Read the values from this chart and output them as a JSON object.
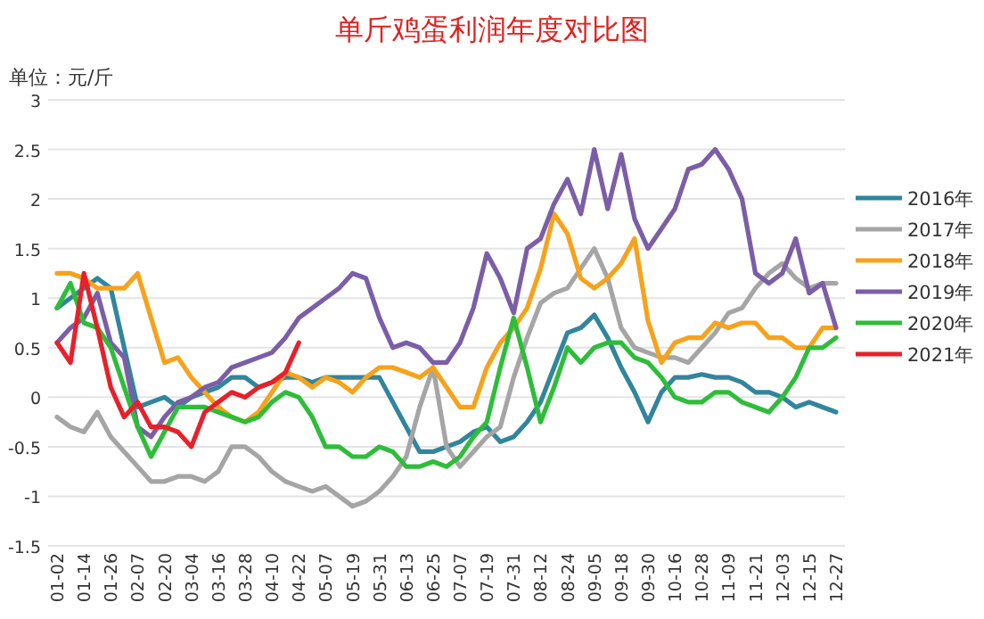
{
  "chart_data": {
    "type": "line",
    "title": "单斤鸡蛋利润年度对比图",
    "ylabel": "单位：元/斤",
    "categories": [
      "01-02",
      null,
      "01-14",
      null,
      "01-26",
      null,
      "02-07",
      null,
      "02-20",
      null,
      "03-04",
      null,
      "03-16",
      null,
      "03-28",
      null,
      "04-10",
      null,
      "04-22",
      null,
      "05-07",
      null,
      "05-19",
      null,
      "05-31",
      null,
      "06-13",
      null,
      "06-25",
      null,
      "07-07",
      null,
      "07-19",
      null,
      "07-31",
      null,
      "08-12",
      null,
      "08-24",
      null,
      "09-05",
      null,
      "09-18",
      null,
      "09-30",
      null,
      "10-16",
      null,
      "10-28",
      null,
      "11-09",
      null,
      "11-21",
      null,
      "12-03",
      null,
      "12-15",
      null,
      "12-27"
    ],
    "series": [
      {
        "name": "2016年",
        "color": "#31859c",
        "values": [
          0.9,
          1.0,
          1.1,
          1.2,
          1.1,
          0.5,
          -0.1,
          -0.05,
          0,
          -0.1,
          0,
          0.05,
          0.1,
          0.2,
          0.2,
          0.1,
          0.15,
          0.2,
          0.2,
          0.15,
          0.2,
          0.2,
          0.2,
          0.2,
          0.2,
          -0.05,
          -0.3,
          -0.55,
          -0.55,
          -0.5,
          -0.45,
          -0.35,
          -0.3,
          -0.45,
          -0.4,
          -0.25,
          -0.05,
          0.3,
          0.65,
          0.7,
          0.83,
          0.6,
          0.3,
          0.05,
          -0.25,
          0.05,
          0.2,
          0.2,
          0.23,
          0.2,
          0.2,
          0.15,
          0.05,
          0.05,
          0,
          -0.1,
          -0.05,
          -0.1,
          -0.15
        ]
      },
      {
        "name": "2017年",
        "color": "#a5a5a5",
        "values": [
          -0.2,
          -0.3,
          -0.35,
          -0.15,
          -0.4,
          -0.55,
          -0.7,
          -0.85,
          -0.85,
          -0.8,
          -0.8,
          -0.85,
          -0.75,
          -0.5,
          -0.5,
          -0.6,
          -0.75,
          -0.85,
          -0.9,
          -0.95,
          -0.9,
          -1.0,
          -1.1,
          -1.05,
          -0.95,
          -0.8,
          -0.6,
          -0.1,
          0.3,
          -0.5,
          -0.7,
          -0.55,
          -0.4,
          -0.3,
          0.2,
          0.6,
          0.95,
          1.05,
          1.1,
          1.3,
          1.5,
          1.2,
          0.7,
          0.5,
          0.45,
          0.4,
          0.4,
          0.35,
          0.5,
          0.65,
          0.85,
          0.9,
          1.1,
          1.25,
          1.35,
          1.2,
          1.1,
          1.15,
          1.15
        ]
      },
      {
        "name": "2018年",
        "color": "#f7a21b",
        "values": [
          1.25,
          1.25,
          1.2,
          1.1,
          1.1,
          1.1,
          1.25,
          0.8,
          0.35,
          0.4,
          0.2,
          0.05,
          -0.1,
          -0.2,
          -0.25,
          -0.15,
          0.05,
          0.25,
          0.2,
          0.1,
          0.2,
          0.15,
          0.05,
          0.2,
          0.3,
          0.3,
          0.25,
          0.2,
          0.3,
          0.1,
          -0.1,
          -0.1,
          0.3,
          0.55,
          0.7,
          0.9,
          1.3,
          1.85,
          1.65,
          1.2,
          1.1,
          1.2,
          1.35,
          1.6,
          0.77,
          0.35,
          0.55,
          0.6,
          0.6,
          0.75,
          0.7,
          0.75,
          0.75,
          0.6,
          0.6,
          0.5,
          0.5,
          0.7,
          0.7
        ]
      },
      {
        "name": "2019年",
        "color": "#7b5ea7",
        "values": [
          0.55,
          0.7,
          0.8,
          1.05,
          0.55,
          0.4,
          -0.3,
          -0.4,
          -0.2,
          -0.05,
          0,
          0.1,
          0.15,
          0.3,
          0.35,
          0.4,
          0.45,
          0.6,
          0.8,
          0.9,
          1.0,
          1.1,
          1.25,
          1.2,
          0.8,
          0.5,
          0.55,
          0.5,
          0.35,
          0.35,
          0.55,
          0.9,
          1.45,
          1.2,
          0.85,
          1.5,
          1.6,
          1.95,
          2.2,
          1.85,
          2.5,
          1.9,
          2.45,
          1.8,
          1.5,
          1.7,
          1.9,
          2.3,
          2.35,
          2.5,
          2.3,
          2.0,
          1.25,
          1.15,
          1.25,
          1.6,
          1.05,
          1.15,
          0.7
        ]
      },
      {
        "name": "2020年",
        "color": "#2ebd3a",
        "values": [
          0.9,
          1.15,
          0.75,
          0.7,
          0.5,
          0.1,
          -0.3,
          -0.6,
          -0.35,
          -0.1,
          -0.1,
          -0.1,
          -0.15,
          -0.2,
          -0.25,
          -0.2,
          -0.05,
          0.05,
          0,
          -0.2,
          -0.5,
          -0.5,
          -0.6,
          -0.6,
          -0.5,
          -0.55,
          -0.7,
          -0.7,
          -0.65,
          -0.7,
          -0.6,
          -0.4,
          -0.25,
          0.3,
          0.8,
          0.3,
          -0.25,
          0.1,
          0.5,
          0.35,
          0.5,
          0.55,
          0.55,
          0.4,
          0.35,
          0.2,
          0,
          -0.05,
          -0.05,
          0.05,
          0.05,
          -0.05,
          -0.1,
          -0.15,
          0,
          0.2,
          0.5,
          0.5,
          0.6
        ]
      },
      {
        "name": "2021年",
        "color": "#e8202a",
        "values": [
          0.55,
          0.35,
          1.25,
          0.7,
          0.1,
          -0.2,
          -0.05,
          -0.3,
          -0.3,
          -0.35,
          -0.5,
          -0.15,
          -0.05,
          0.05,
          0,
          0.1,
          0.15,
          0.25,
          0.55,
          null,
          null,
          null,
          null,
          null,
          null,
          null,
          null,
          null,
          null,
          null,
          null,
          null,
          null,
          null,
          null,
          null,
          null,
          null,
          null,
          null,
          null,
          null,
          null,
          null,
          null,
          null,
          null,
          null,
          null,
          null,
          null,
          null,
          null,
          null,
          null,
          null,
          null,
          null,
          null
        ]
      }
    ],
    "ylim": [
      -1.5,
      3
    ],
    "yticks": [
      -1.5,
      -1,
      -0.5,
      0,
      0.5,
      1,
      1.5,
      2,
      2.5,
      3
    ],
    "grid": "y",
    "legend": "right",
    "line_style": "solid",
    "marker": "none"
  }
}
